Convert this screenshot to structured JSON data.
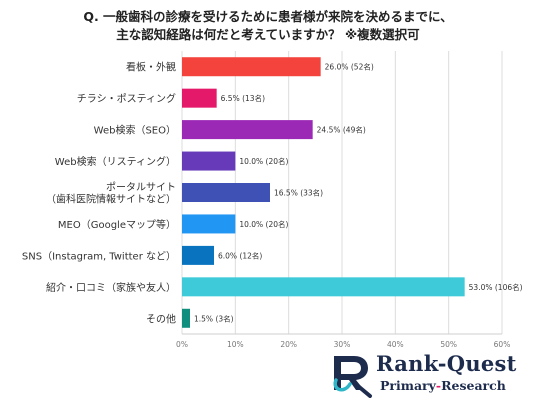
{
  "title": {
    "line1": "Q.  一般歯科の診療を受けるために患者様が来院を決めるまでに、",
    "line2": "主な認知経路は何だと考えていますか？ ※複数選択可"
  },
  "chart_data": {
    "type": "bar",
    "orientation": "horizontal",
    "categories": [
      [
        "看板・外観"
      ],
      [
        "チラシ・ポスティング"
      ],
      [
        "Web検索（SEO）"
      ],
      [
        "Web検索（リスティング）"
      ],
      [
        "ポータルサイト",
        "（歯科医院情報サイトなど）"
      ],
      [
        "MEO（Googleマップ等）"
      ],
      [
        "SNS（Instagram, Twitter など）"
      ],
      [
        "紹介・口コミ（家族や友人）"
      ],
      [
        "その他"
      ]
    ],
    "values": [
      26.0,
      6.5,
      24.5,
      10.0,
      16.5,
      10.0,
      6.0,
      53.0,
      1.5
    ],
    "data_labels": [
      "26.0% (52名)",
      "6.5% (13名)",
      "24.5% (49名)",
      "10.0% (20名)",
      "16.5% (33名)",
      "10.0% (20名)",
      "6.0% (12名)",
      "53.0% (106名)",
      "1.5% (3名)"
    ],
    "colors": [
      "#f4433c",
      "#e5196a",
      "#9c29b5",
      "#663ab8",
      "#3f51b4",
      "#2196f3",
      "#0a73c0",
      "#3ecad9",
      "#108f7e"
    ],
    "x_ticks": [
      "0%",
      "10%",
      "20%",
      "30%",
      "40%",
      "50%",
      "60%"
    ],
    "xlim": [
      0,
      60
    ],
    "grid": true
  },
  "logo": {
    "main": "Rank-Quest",
    "sub": "Primary-Research",
    "sub_dash_color": "#e5196a",
    "color": "#1d2b4d"
  }
}
